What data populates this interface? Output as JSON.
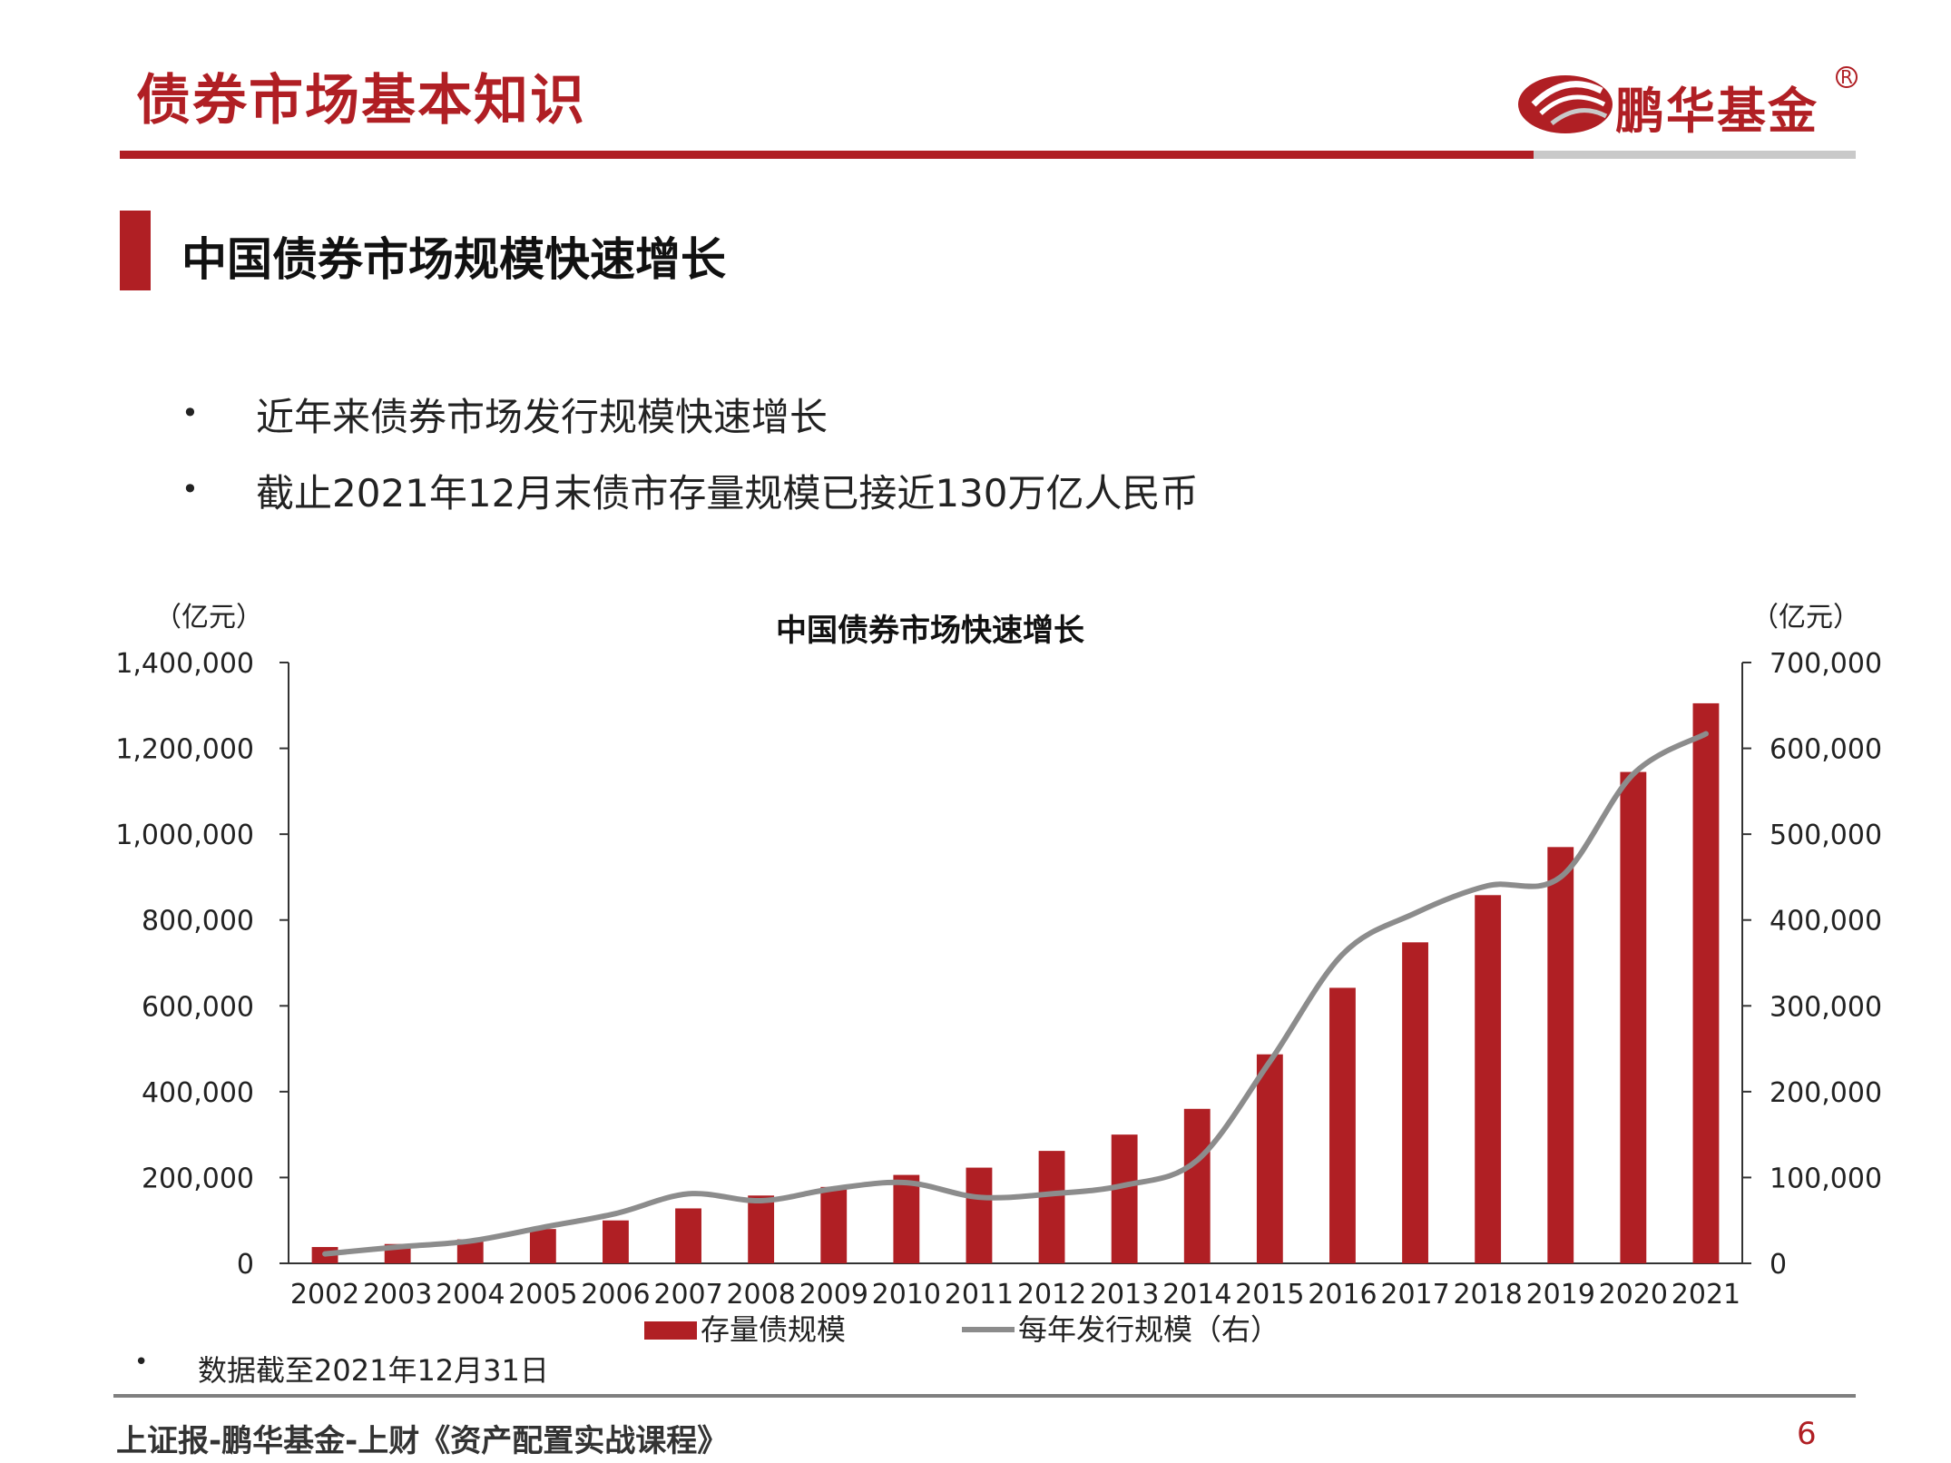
{
  "header": {
    "title": "债券市场基本知识",
    "logo_text": "鹏华基金",
    "logo_reg": "R"
  },
  "colors": {
    "brand_red": "#b01f24",
    "line_gray": "#8c8c8c",
    "rule_gray": "#c9c9c9"
  },
  "section": {
    "title": "中国债券市场规模快速增长"
  },
  "bullets": [
    "近年来债券市场发行规模快速增长",
    "截止2021年12月末债市存量规模已接近130万亿人民币"
  ],
  "chart_data": {
    "type": "bar+line",
    "title": "中国债券市场快速增长",
    "left_unit": "（亿元）",
    "right_unit": "（亿元）",
    "categories": [
      "2002",
      "2003",
      "2004",
      "2005",
      "2006",
      "2007",
      "2008",
      "2009",
      "2010",
      "2011",
      "2012",
      "2013",
      "2014",
      "2015",
      "2016",
      "2017",
      "2018",
      "2019",
      "2020",
      "2021"
    ],
    "left_ylim": [
      0,
      1400000
    ],
    "right_ylim": [
      0,
      700000
    ],
    "left_ticks": [
      "0",
      "200,000",
      "400,000",
      "600,000",
      "800,000",
      "1,000,000",
      "1,200,000",
      "1,400,000"
    ],
    "right_ticks": [
      "0",
      "100,000",
      "200,000",
      "300,000",
      "400,000",
      "500,000",
      "600,000",
      "700,000"
    ],
    "series": [
      {
        "name": "存量债规模",
        "kind": "bar",
        "axis": "left",
        "color": "#b01f24",
        "values": [
          38000,
          45000,
          56000,
          80000,
          100000,
          128000,
          158000,
          178000,
          206000,
          223000,
          262000,
          300000,
          360000,
          487000,
          642000,
          748000,
          858000,
          970000,
          1145000,
          1305000
        ]
      },
      {
        "name": "每年发行规模（右）",
        "kind": "line",
        "axis": "right",
        "color": "#8c8c8c",
        "values": [
          11000,
          19000,
          26000,
          42000,
          58000,
          81000,
          73000,
          87000,
          94000,
          77000,
          81000,
          91000,
          120000,
          235000,
          360000,
          408000,
          440000,
          450000,
          570000,
          617000
        ]
      }
    ],
    "legend_placement": "bottom",
    "grid": false
  },
  "note": "数据截至2021年12月31日",
  "footer": {
    "text": "上证报-鹏华基金-上财《资产配置实战课程》",
    "page": "6"
  }
}
